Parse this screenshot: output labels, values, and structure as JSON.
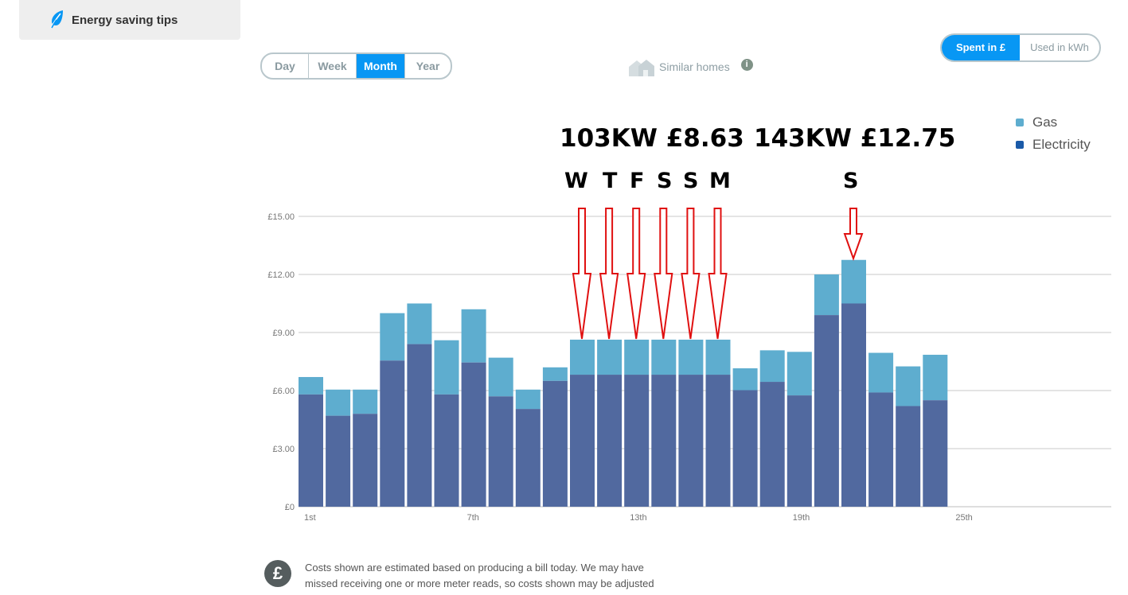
{
  "sidebar": {
    "label": "Energy saving tips",
    "icon": "leaf-icon"
  },
  "period_toggle": {
    "options": [
      {
        "label": "Day",
        "active": false
      },
      {
        "label": "Week",
        "active": false
      },
      {
        "label": "Month",
        "active": true
      },
      {
        "label": "Year",
        "active": false
      }
    ]
  },
  "similar_homes": {
    "label": "Similar homes",
    "info_icon": "i"
  },
  "unit_toggle": {
    "options": [
      {
        "label": "Spent in £",
        "active": true
      },
      {
        "label": "Used in kWh",
        "active": false
      }
    ]
  },
  "annotations": {
    "left_total": "103KW £8.63",
    "right_total": "143KW £12.75",
    "days_left": [
      "W",
      "T",
      "F",
      "S",
      "S",
      "M"
    ],
    "day_right": "S"
  },
  "colors": {
    "accent": "#0897f4",
    "gas": "#5eadcf",
    "electricity": "#51699f",
    "arrow": "#e01010"
  },
  "chart_data": {
    "type": "bar",
    "stacked": true,
    "ylim": [
      0,
      15
    ],
    "yticks": [
      "£0",
      "£3.00",
      "£6.00",
      "£9.00",
      "£12.00",
      "£15.00"
    ],
    "xtick_labels": [
      {
        "day": 1,
        "label": "1st"
      },
      {
        "day": 7,
        "label": "7th"
      },
      {
        "day": 13,
        "label": "13th"
      },
      {
        "day": 19,
        "label": "19th"
      },
      {
        "day": 25,
        "label": "25th"
      }
    ],
    "days": [
      1,
      2,
      3,
      4,
      5,
      6,
      7,
      8,
      9,
      10,
      11,
      12,
      13,
      14,
      15,
      16,
      17,
      18,
      19,
      20,
      21,
      22,
      23,
      24
    ],
    "series": [
      {
        "name": "Electricity",
        "values": [
          5.8,
          4.7,
          4.8,
          7.55,
          8.4,
          5.8,
          7.45,
          5.7,
          5.05,
          6.5,
          6.82,
          6.82,
          6.82,
          6.82,
          6.82,
          6.82,
          6.02,
          6.45,
          5.75,
          9.9,
          10.5,
          5.9,
          5.2,
          5.5
        ]
      },
      {
        "name": "Gas",
        "values": [
          0.9,
          1.35,
          1.25,
          2.45,
          2.1,
          2.8,
          2.75,
          2.0,
          1.0,
          0.7,
          1.81,
          1.81,
          1.81,
          1.81,
          1.81,
          1.81,
          1.13,
          1.63,
          2.25,
          2.1,
          2.25,
          2.05,
          2.05,
          2.35
        ]
      }
    ],
    "legend": [
      "Gas",
      "Electricity"
    ],
    "legend_position": "top-right",
    "grid": true
  },
  "footnote": {
    "icon": "£",
    "text": "Costs shown are estimated based on producing a bill today. We may have missed receiving one or more meter reads, so costs shown may be adjusted"
  }
}
